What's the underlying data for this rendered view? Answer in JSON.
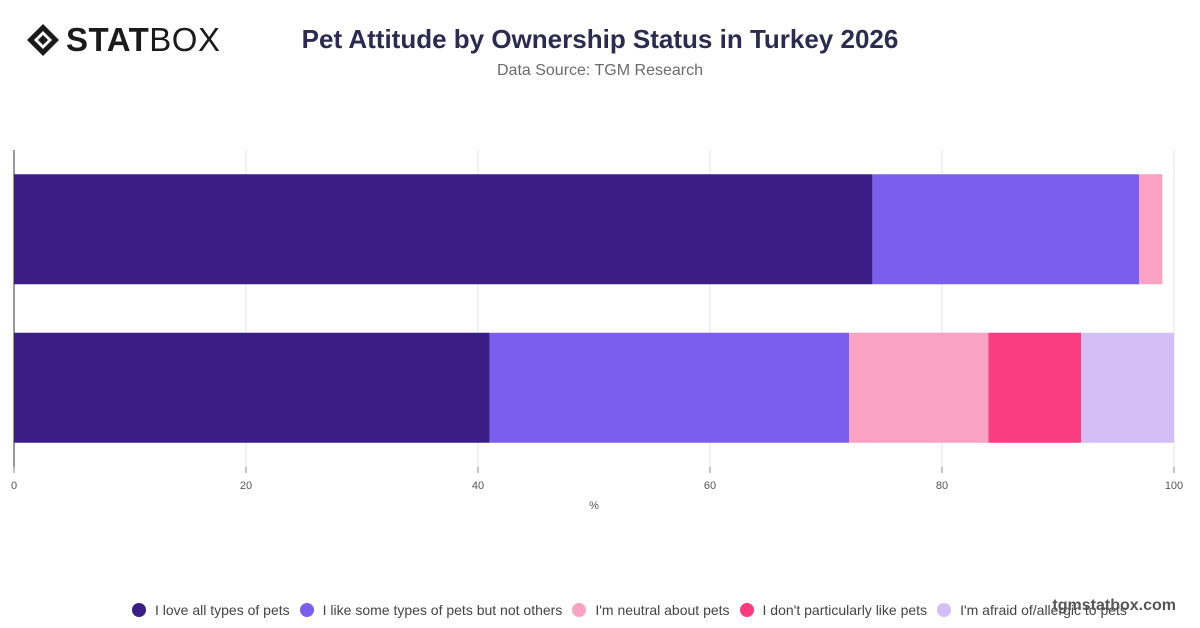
{
  "logo": {
    "part1": "STAT",
    "part2": "BOX"
  },
  "chart_data": {
    "type": "bar",
    "orientation": "horizontal",
    "stacked": true,
    "title": "Pet Attitude by Ownership Status in Turkey 2026",
    "subtitle": "Data Source: TGM Research",
    "xlabel": "%",
    "ylabel": "",
    "xlim": [
      0,
      100
    ],
    "xticks": [
      0,
      20,
      40,
      60,
      80,
      100
    ],
    "grid": true,
    "legend_position": "bottom",
    "categories": [
      "",
      ""
    ],
    "series": [
      {
        "name": "I love all types of pets",
        "color": "#3a1e86",
        "values": [
          74,
          41
        ]
      },
      {
        "name": "I like some types of pets but not others",
        "color": "#7b5eed",
        "values": [
          23,
          31
        ]
      },
      {
        "name": "I'm neutral about pets",
        "color": "#f9a2c1",
        "values": [
          2,
          12
        ]
      },
      {
        "name": "I don't particularly like pets",
        "color": "#fb3c7f",
        "values": [
          0,
          8
        ]
      },
      {
        "name": "I'm afraid of/allergic to pets",
        "color": "#d3bef8",
        "values": [
          0,
          8
        ]
      }
    ]
  },
  "watermark": "tgmstatbox.com"
}
